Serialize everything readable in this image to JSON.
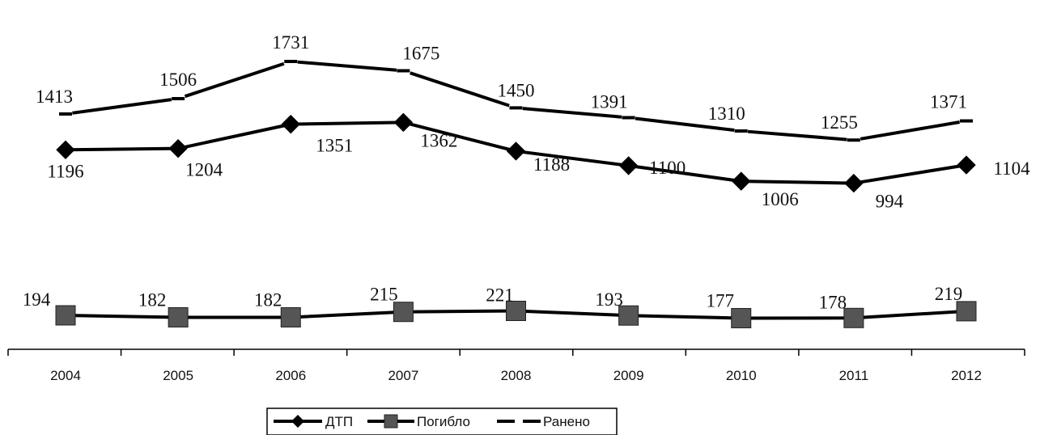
{
  "chart_data": {
    "type": "line",
    "title": "",
    "xlabel": "",
    "ylabel": "",
    "categories": [
      "2004",
      "2005",
      "2006",
      "2007",
      "2008",
      "2009",
      "2010",
      "2011",
      "2012"
    ],
    "series": [
      {
        "name": "ДТП",
        "values": [
          1196,
          1204,
          1351,
          1362,
          1188,
          1100,
          1006,
          994,
          1104
        ],
        "color": "#000000",
        "marker": "diamond",
        "line_style": "solid"
      },
      {
        "name": "Погибло",
        "values": [
          194,
          182,
          182,
          215,
          221,
          193,
          177,
          178,
          219
        ],
        "color": "#000000",
        "marker": "square",
        "marker_color": "#555555",
        "line_style": "solid"
      },
      {
        "name": "Ранено",
        "values": [
          1413,
          1506,
          1731,
          1675,
          1450,
          1391,
          1310,
          1255,
          1371
        ],
        "color": "#000000",
        "marker": "dash",
        "line_style": "dashed"
      }
    ],
    "grid": false,
    "y_axis_visible": false,
    "legend_position": "bottom",
    "data_labels": true
  }
}
